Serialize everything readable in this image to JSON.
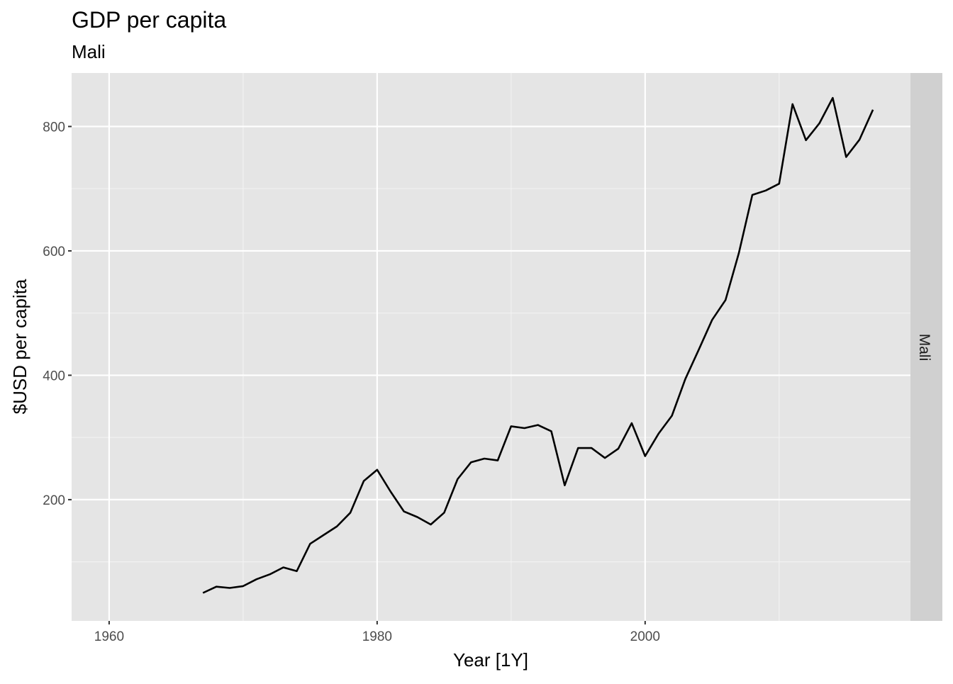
{
  "chart_data": {
    "type": "line",
    "title": "GDP per capita",
    "subtitle": "Mali",
    "xlabel": "Year [1Y]",
    "ylabel": "$USD per capita",
    "facet_label": "Mali",
    "xlim": [
      1957.2,
      2019.8
    ],
    "ylim": [
      5,
      886
    ],
    "x_ticks": [
      1960,
      1980,
      2000
    ],
    "y_ticks": [
      200,
      400,
      600,
      800
    ],
    "grid": true,
    "line_color": "#000000",
    "panel_color": "#e5e5e5",
    "strip_color": "#d0d0d0",
    "x": [
      1967,
      1968,
      1969,
      1970,
      1971,
      1972,
      1973,
      1974,
      1975,
      1976,
      1977,
      1978,
      1979,
      1980,
      1981,
      1982,
      1983,
      1984,
      1985,
      1986,
      1987,
      1988,
      1989,
      1990,
      1991,
      1992,
      1993,
      1994,
      1995,
      1996,
      1997,
      1998,
      1999,
      2000,
      2001,
      2002,
      2003,
      2004,
      2005,
      2006,
      2007,
      2008,
      2009,
      2010,
      2011,
      2012,
      2013,
      2014,
      2015,
      2016,
      2017
    ],
    "y": [
      50,
      60,
      58,
      61,
      72,
      80,
      91,
      85,
      129,
      143,
      157,
      179,
      230,
      248,
      213,
      181,
      172,
      160,
      179,
      233,
      260,
      266,
      263,
      318,
      315,
      320,
      310,
      223,
      283,
      283,
      267,
      282,
      323,
      270,
      306,
      335,
      394,
      441,
      489,
      521,
      597,
      690,
      697,
      708,
      836,
      778,
      805,
      846,
      751,
      779,
      827
    ]
  }
}
